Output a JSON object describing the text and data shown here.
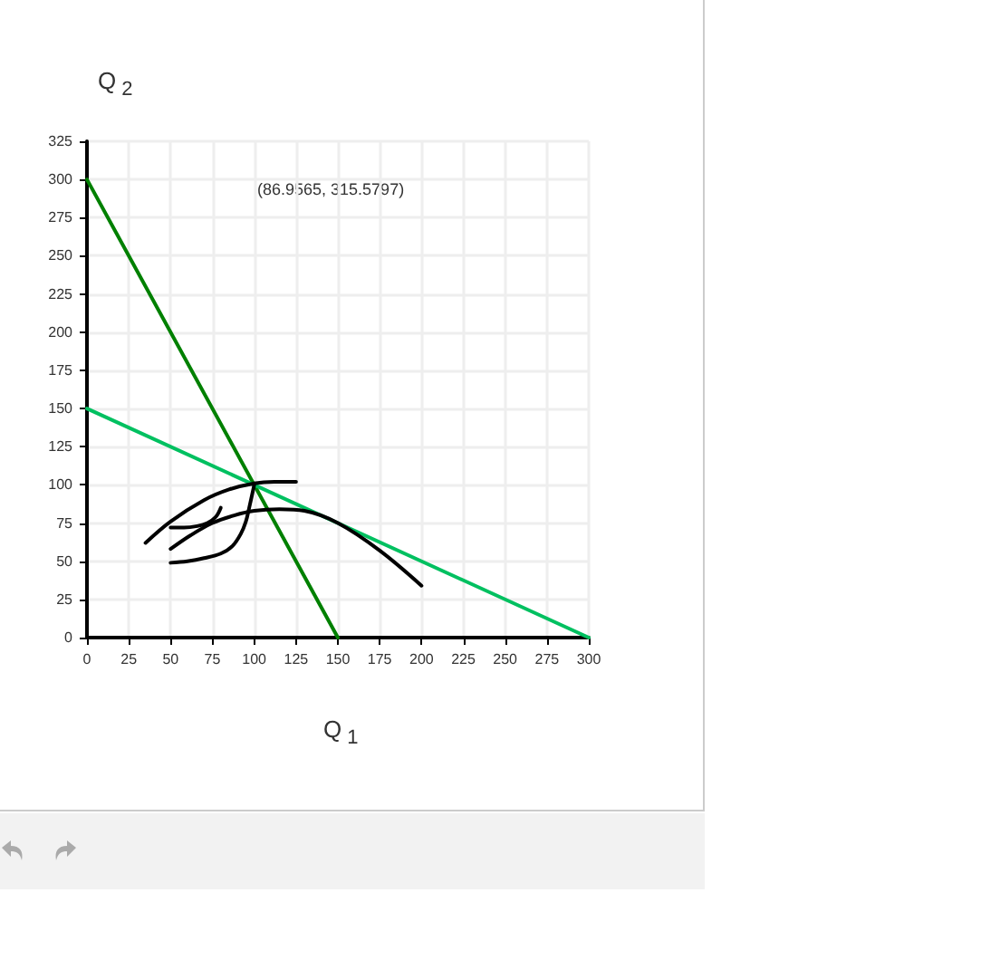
{
  "chart_data": {
    "type": "line",
    "xlabel": "Q$_{1}$",
    "ylabel": "Q$_{2}$",
    "annotations": [
      "(86.9565, 315.5797)"
    ],
    "xlim": [
      0,
      300
    ],
    "xticks": [
      0,
      25,
      50,
      75,
      100,
      125,
      150,
      175,
      200,
      225,
      250,
      275,
      300
    ],
    "ylim": [
      0,
      325
    ],
    "yticks": [
      0,
      25,
      50,
      75,
      100,
      125,
      150,
      175,
      200,
      225,
      250,
      275,
      300,
      325
    ],
    "grid": true,
    "marker": "none",
    "series": [
      {
        "color": "#008000",
        "x": [
          0,
          150
        ],
        "values": [
          300,
          0
        ]
      },
      {
        "color": "#00c060",
        "x": [
          0,
          300
        ],
        "values": [
          150,
          0
        ]
      },
      {
        "color": "#000000",
        "x": [
          35,
          50,
          70,
          85,
          100,
          112,
          125
        ],
        "values": [
          62,
          76,
          90,
          97,
          101,
          102,
          102
        ]
      },
      {
        "color": "#000000",
        "x": [
          50,
          62,
          75,
          88,
          100,
          115,
          130,
          150,
          175,
          200
        ],
        "values": [
          58,
          67,
          75,
          80,
          83,
          84,
          83,
          75,
          57,
          34
        ]
      },
      {
        "color": "#000000",
        "x": [
          50,
          58,
          66,
          72,
          77,
          80
        ],
        "values": [
          72,
          72,
          73,
          75,
          79,
          85
        ]
      },
      {
        "color": "#000000",
        "x": [
          50,
          60,
          70,
          80,
          87,
          92,
          95,
          97,
          100
        ],
        "values": [
          49,
          50,
          52,
          55,
          60,
          68,
          76,
          85,
          100
        ]
      }
    ]
  }
}
